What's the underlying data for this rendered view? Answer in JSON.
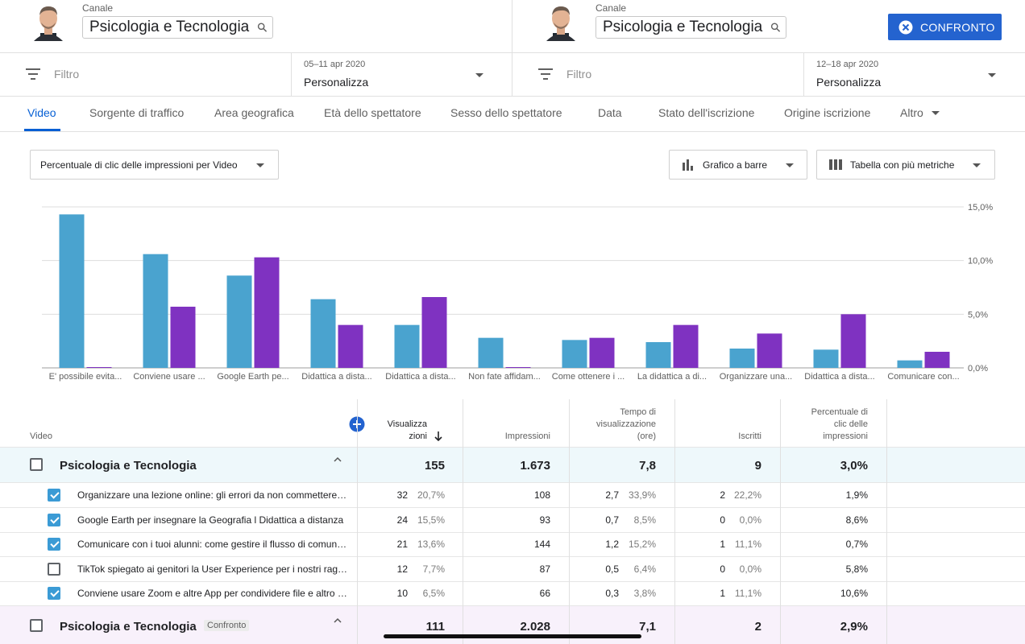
{
  "header": {
    "left": {
      "channel_label": "Canale",
      "channel_name": "Psicologia e Tecnologia"
    },
    "right": {
      "channel_label": "Canale",
      "channel_name": "Psicologia e Tecnologia"
    },
    "compare_button": "CONFRONTO"
  },
  "filters": {
    "left": {
      "filter_placeholder": "Filtro",
      "date_range": "05–11 apr 2020",
      "period": "Personalizza"
    },
    "right": {
      "filter_placeholder": "Filtro",
      "date_range": "12–18 apr 2020",
      "period": "Personalizza"
    }
  },
  "tabs": [
    {
      "label": "Video",
      "active": true
    },
    {
      "label": "Sorgente di traffico"
    },
    {
      "label": "Area geografica"
    },
    {
      "label": "Età dello spettatore"
    },
    {
      "label": "Sesso dello spettatore"
    },
    {
      "label": "Data"
    },
    {
      "label": "Stato dell'iscrizione"
    },
    {
      "label": "Origine iscrizione"
    },
    {
      "label": "Altro"
    }
  ],
  "toolbar": {
    "metric_select": "Percentuale di clic delle impressioni per Video",
    "chart_type": "Grafico a barre",
    "table_type": "Tabella con più metriche"
  },
  "chart_data": {
    "type": "bar",
    "categories": [
      "E' possibile evita...",
      "Conviene usare ...",
      "Google Earth pe...",
      "Didattica a dista...",
      "Didattica a dista...",
      "Non fate affidam...",
      "Come ottenere i ...",
      "La didattica a di...",
      "Organizzare una...",
      "Didattica a dista...",
      "Comunicare con..."
    ],
    "series": [
      {
        "color": "#4aa3cf",
        "values": [
          14.3,
          10.6,
          8.6,
          6.4,
          4.0,
          2.8,
          2.6,
          2.4,
          1.8,
          1.7,
          0.7
        ]
      },
      {
        "color": "#7f32c1",
        "values": [
          0.0,
          5.7,
          10.3,
          4.0,
          6.6,
          0.0,
          2.8,
          4.0,
          3.2,
          5.0,
          1.5
        ]
      }
    ],
    "yticks": [
      "0,0%",
      "5,0%",
      "10,0%",
      "15,0%"
    ],
    "ylim": [
      0,
      15
    ],
    "grid": true,
    "axis_position": "right"
  },
  "table": {
    "headers": {
      "video": "Video",
      "views": [
        "Visualizza",
        "zioni"
      ],
      "impressions": "Impressioni",
      "watch_time": [
        "Tempo di",
        "visualizzazione",
        "(ore)"
      ],
      "subscribers": "Iscritti",
      "ctr": [
        "Percentuale di",
        "clic delle",
        "impressioni"
      ]
    },
    "group1": {
      "name": "Psicologia e Tecnologia",
      "views": "155",
      "impressions": "1.673",
      "watch_time": "7,8",
      "subscribers": "9",
      "ctr": "3,0%"
    },
    "rows": [
      {
        "checked": true,
        "title": "Organizzare una lezione online: gli errori da non commettere…",
        "views": "32",
        "views_pct": "20,7%",
        "impressions": "108",
        "watch": "2,7",
        "watch_pct": "33,9%",
        "subs": "2",
        "subs_pct": "22,2%",
        "ctr": "1,9%"
      },
      {
        "checked": true,
        "title": "Google Earth per insegnare la Geografia l Didattica a distanza",
        "views": "24",
        "views_pct": "15,5%",
        "impressions": "93",
        "watch": "0,7",
        "watch_pct": "8,5%",
        "subs": "0",
        "subs_pct": "0,0%",
        "ctr": "8,6%"
      },
      {
        "checked": true,
        "title": "Comunicare con i tuoi alunni: come gestire il flusso di comun…",
        "views": "21",
        "views_pct": "13,6%",
        "impressions": "144",
        "watch": "1,2",
        "watch_pct": "15,2%",
        "subs": "1",
        "subs_pct": "11,1%",
        "ctr": "0,7%"
      },
      {
        "checked": false,
        "title": "TikTok spiegato ai genitori la User Experience per i nostri rag…",
        "views": "12",
        "views_pct": "7,7%",
        "impressions": "87",
        "watch": "0,5",
        "watch_pct": "6,4%",
        "subs": "0",
        "subs_pct": "0,0%",
        "ctr": "5,8%"
      },
      {
        "checked": true,
        "title": "Conviene usare Zoom e altre App per condividere file e altro …",
        "views": "10",
        "views_pct": "6,5%",
        "impressions": "66",
        "watch": "0,3",
        "watch_pct": "3,8%",
        "subs": "1",
        "subs_pct": "11,1%",
        "ctr": "10,6%"
      }
    ],
    "group2": {
      "name": "Psicologia e Tecnologia",
      "badge": "Confronto",
      "views": "111",
      "impressions": "2.028",
      "watch_time": "7,1",
      "subscribers": "2",
      "ctr": "2,9%"
    }
  },
  "colors": {
    "accent": "#065fd4",
    "button": "#2463cf",
    "series1": "#4aa3cf",
    "series2": "#7f32c1",
    "group1_bg": "#eef8fb",
    "group2_bg": "#f8f1fb"
  }
}
